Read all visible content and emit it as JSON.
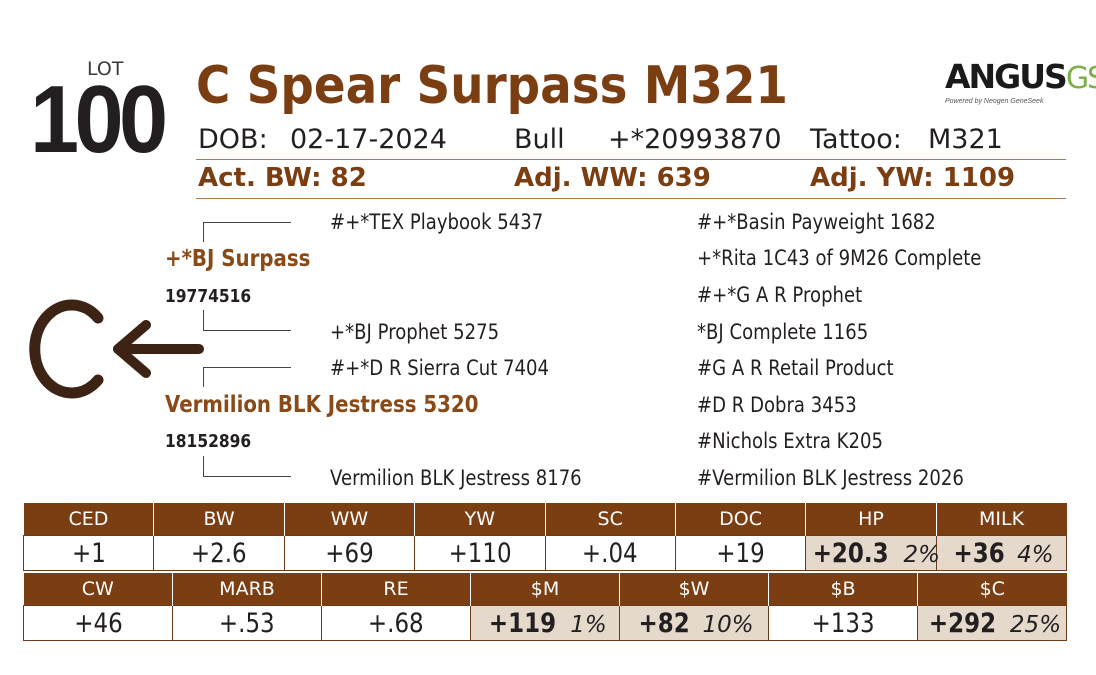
{
  "lot": {
    "label": "LOT",
    "number": "100"
  },
  "animal": {
    "name": "C Spear Surpass M321",
    "dob_label": "DOB:",
    "dob": "02-17-2024",
    "sex": "Bull",
    "registration": "+*20993870",
    "tattoo_label": "Tattoo:",
    "tattoo": "M321"
  },
  "weights": {
    "bw": "Act. BW: 82",
    "ww": "Adj. WW: 639",
    "yw": "Adj. YW: 1109"
  },
  "logo": {
    "angus": "ANGUS",
    "gs": "GS",
    "tagline": "Powered by Neogen GeneSeek"
  },
  "brand": {
    "letter": "C",
    "arrow": "←"
  },
  "pedigree": {
    "sire": {
      "name": "+*BJ Surpass",
      "reg": "19774516"
    },
    "dam": {
      "name": "Vermilion BLK Jestress 5320",
      "reg": "18152896"
    },
    "sire_sire": "#+*TEX Playbook 5437",
    "sire_dam": "+*BJ Prophet 5275",
    "dam_sire": "#+*D R Sierra Cut 7404",
    "dam_dam": "Vermilion BLK Jestress 8176",
    "right": [
      "#+*Basin Payweight 1682",
      "+*Rita 1C43 of 9M26 Complete",
      "#+*G A R Prophet",
      "*BJ Complete 1165",
      "#G A R Retail Product",
      "#D R Dobra 3453",
      "#Nichols Extra K205",
      "#Vermilion BLK Jestress 2026"
    ]
  },
  "epd_row1": {
    "headers": [
      "CED",
      "BW",
      "WW",
      "YW",
      "SC",
      "DOC",
      "HP",
      "MILK"
    ],
    "values": [
      "+1",
      "+2.6",
      "+69",
      "+110",
      "+.04",
      "+19",
      "+20.3",
      "+36"
    ],
    "pcts": [
      "",
      "",
      "",
      "",
      "",
      "",
      "2%",
      "4%"
    ]
  },
  "epd_row2": {
    "headers": [
      "CW",
      "MARB",
      "RE",
      "$M",
      "$W",
      "$B",
      "$C"
    ],
    "values": [
      "+46",
      "+.53",
      "+.68",
      "+119",
      "+82",
      "+133",
      "+292"
    ],
    "pcts": [
      "",
      "",
      "",
      "1%",
      "10%",
      "",
      "25%"
    ]
  },
  "colors": {
    "brown": "#7a3e12",
    "highlight": "#e5d9cb",
    "logo_green": "#7db04a"
  }
}
